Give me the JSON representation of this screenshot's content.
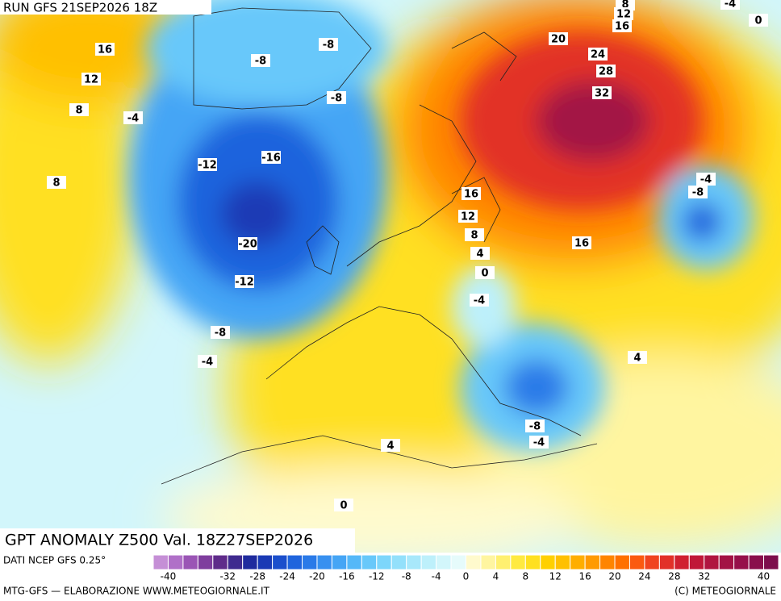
{
  "header": {
    "run": "RUN GFS 21SEP2026 18Z"
  },
  "map": {
    "title": "GPT ANOMALY Z500 Val. 18Z27SEP2026",
    "contour_labels": [
      16,
      12,
      8,
      -4,
      8,
      -8,
      -8,
      -8,
      -16,
      -12,
      -20,
      -12,
      -8,
      -4,
      8,
      12,
      16,
      20,
      24,
      28,
      32,
      -4,
      0,
      16,
      12,
      8,
      4,
      0,
      -4,
      16,
      -4,
      -8,
      4,
      4,
      -8,
      -4,
      0
    ]
  },
  "colorbar": {
    "source": "DATI NCEP GFS 0.25°",
    "range": [
      -42,
      42
    ],
    "colors": [
      "#c58fd6",
      "#b070c8",
      "#9a55b5",
      "#7f3d9e",
      "#5f2b8a",
      "#3f2a8f",
      "#1f2b9e",
      "#1a3ab5",
      "#1b4fcc",
      "#1f64dd",
      "#2a7ae8",
      "#3790f0",
      "#45a5f5",
      "#55b8f8",
      "#68c8fa",
      "#7dd6fb",
      "#93e0fb",
      "#a8e8fb",
      "#bdf0fb",
      "#d2f6fb",
      "#e6fbfb",
      "#fffacd",
      "#fff5a0",
      "#fff070",
      "#ffea40",
      "#ffe020",
      "#ffd000",
      "#ffc000",
      "#ffae00",
      "#ff9a00",
      "#ff8500",
      "#ff7000",
      "#fb5a10",
      "#f04420",
      "#e23028",
      "#d02030",
      "#c01838",
      "#b01540",
      "#a31245",
      "#96104a",
      "#8a0f4c",
      "#7d0e4c"
    ],
    "ticks": [
      -40,
      -32,
      -28,
      -24,
      -20,
      -16,
      -12,
      -8,
      -4,
      0,
      4,
      8,
      12,
      16,
      20,
      24,
      28,
      32,
      40
    ]
  },
  "footer": {
    "left": "MTG-GFS — ELABORAZIONE WWW.METEOGIORNALE.IT",
    "right": "(C) METEOGIORNALE"
  }
}
